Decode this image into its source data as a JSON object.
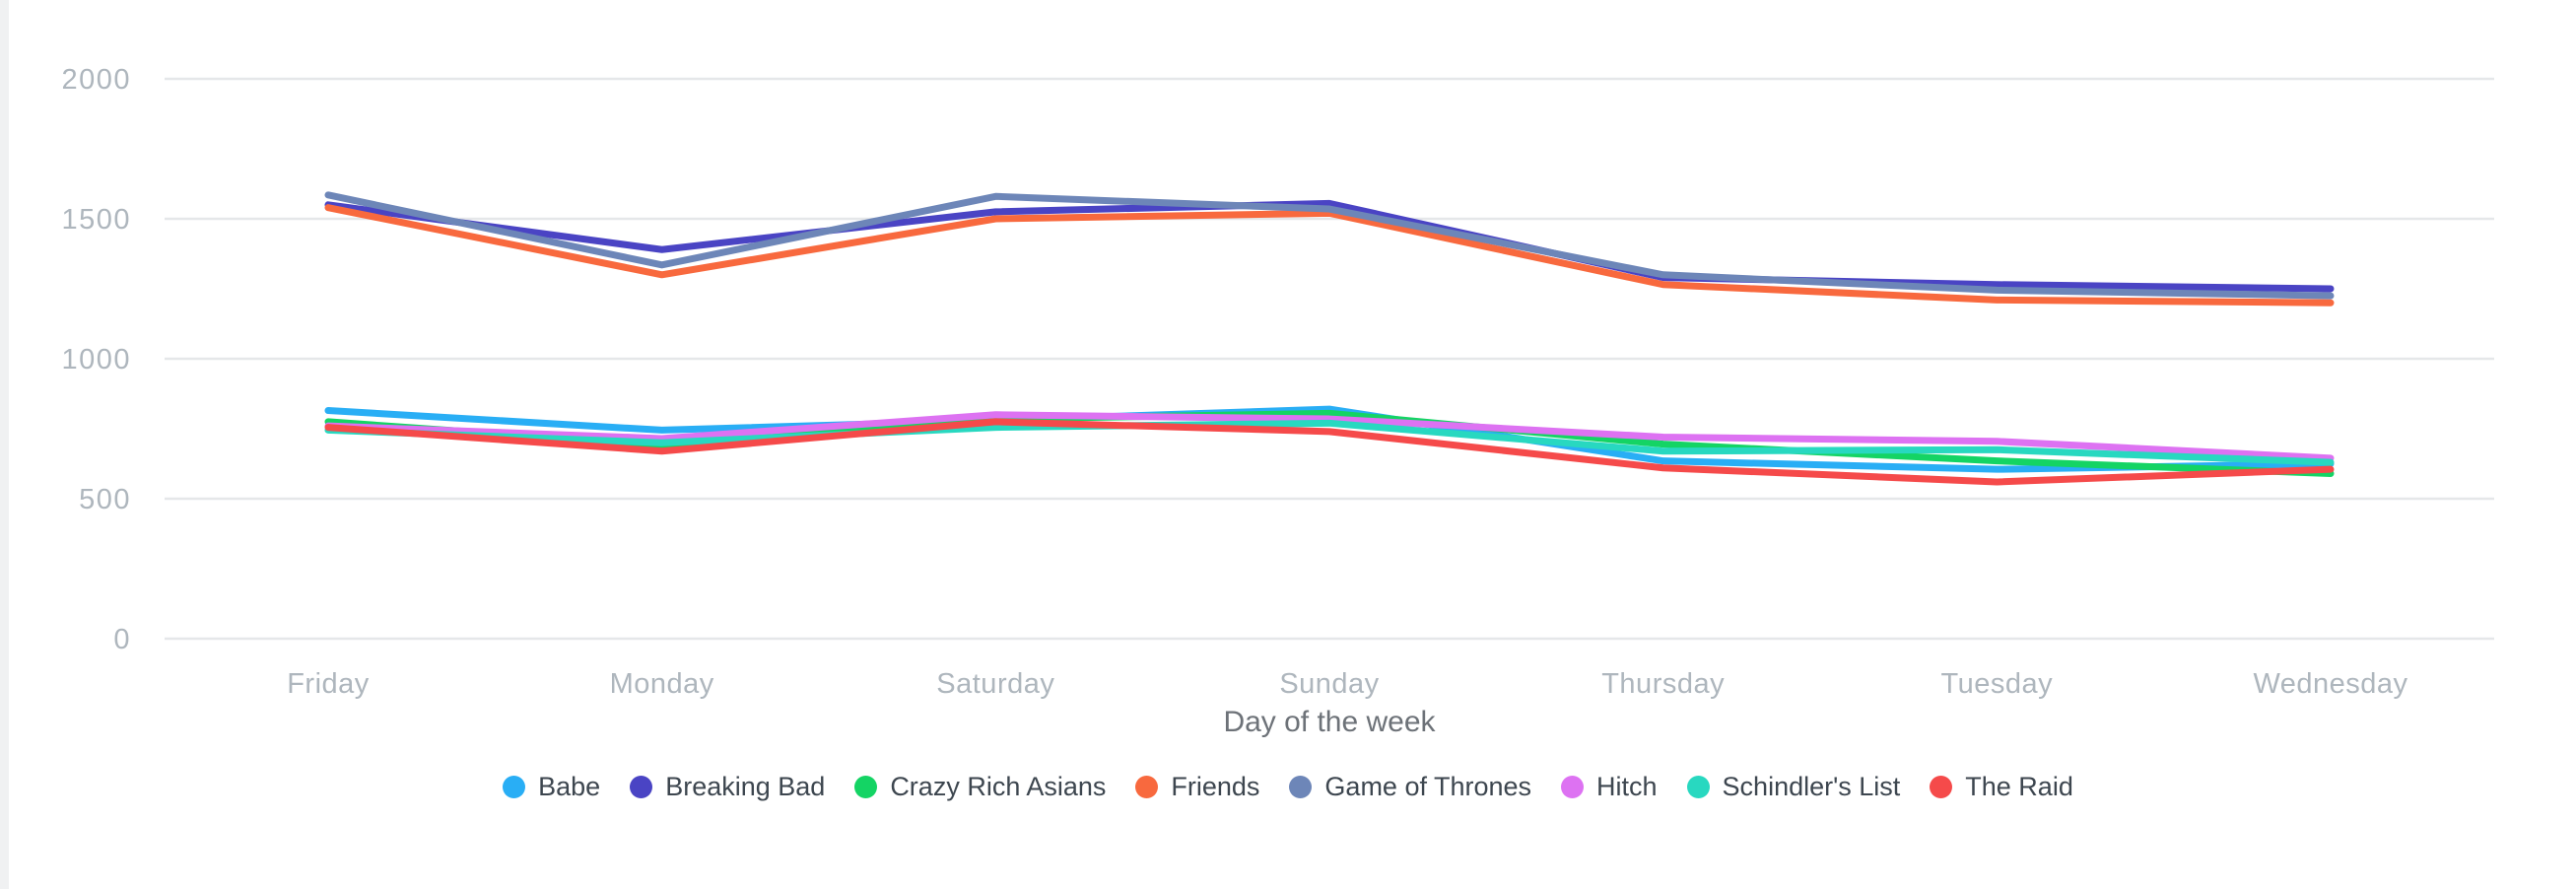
{
  "chart_data": {
    "type": "line",
    "title": "",
    "xlabel": "Day of the week",
    "ylabel": "",
    "categories": [
      "Friday",
      "Monday",
      "Saturday",
      "Sunday",
      "Thursday",
      "Tuesday",
      "Wednesday"
    ],
    "series": [
      {
        "name": "Babe",
        "color": "#29aef5",
        "values": [
          815,
          745,
          780,
          820,
          635,
          605,
          625
        ]
      },
      {
        "name": "Breaking Bad",
        "color": "#4a44c4",
        "values": [
          1550,
          1390,
          1525,
          1555,
          1290,
          1265,
          1250
        ]
      },
      {
        "name": "Crazy Rich Asians",
        "color": "#14d464",
        "values": [
          775,
          690,
          785,
          805,
          695,
          635,
          590
        ]
      },
      {
        "name": "Friends",
        "color": "#f8693e",
        "values": [
          1540,
          1300,
          1500,
          1520,
          1265,
          1210,
          1200
        ]
      },
      {
        "name": "Game of Thrones",
        "color": "#6d86b8",
        "values": [
          1585,
          1335,
          1580,
          1535,
          1300,
          1245,
          1225
        ]
      },
      {
        "name": "Hitch",
        "color": "#dd72f2",
        "values": [
          760,
          715,
          800,
          785,
          720,
          705,
          645
        ]
      },
      {
        "name": "Schindler's List",
        "color": "#28d8c0",
        "values": [
          745,
          700,
          755,
          770,
          670,
          675,
          630
        ]
      },
      {
        "name": "The Raid",
        "color": "#f54a4a",
        "values": [
          755,
          670,
          775,
          740,
          610,
          560,
          605
        ]
      }
    ],
    "y_ticks": [
      0,
      500,
      1000,
      1500,
      2000
    ],
    "ylim": [
      0,
      2000
    ],
    "grid": true,
    "legend_position": "bottom"
  },
  "colors": {
    "background": "#ffffff",
    "grid": "#e5e7e9",
    "tick_label": "#aeb6bd",
    "axis_label": "#6d7278",
    "legend_text": "#3d464f"
  }
}
